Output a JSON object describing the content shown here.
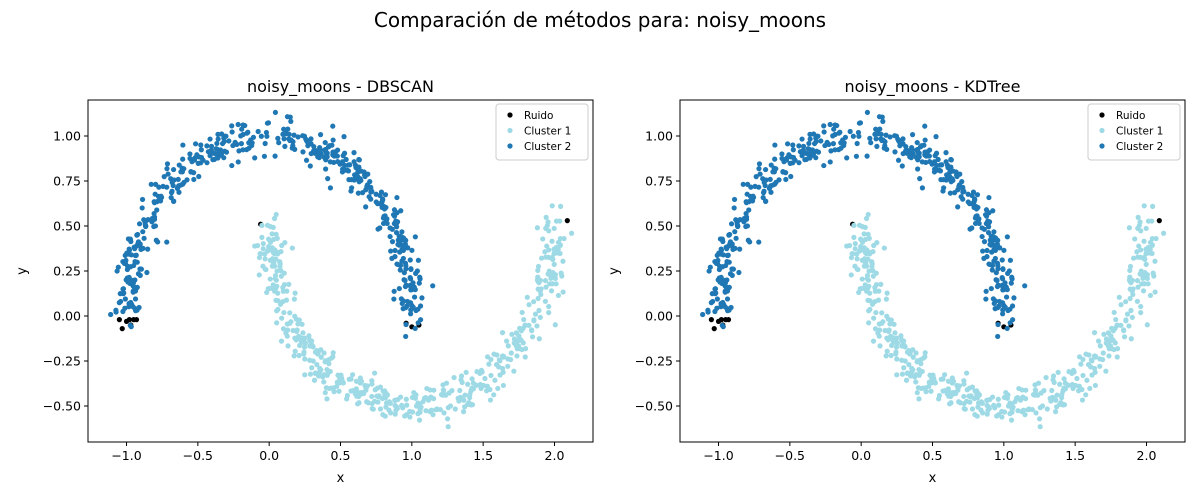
{
  "figure": {
    "suptitle": "Comparación de métodos para: noisy_moons"
  },
  "chart_data": [
    {
      "type": "scatter",
      "dataset": "noisy_moons",
      "method": "DBSCAN",
      "title": "noisy_moons - DBSCAN",
      "xlabel": "x",
      "ylabel": "y",
      "xlim": [
        -1.27,
        2.27
      ],
      "ylim": [
        -0.7,
        1.2
      ],
      "xticks": [
        -1.0,
        -0.5,
        0.0,
        0.5,
        1.0,
        1.5,
        2.0
      ],
      "xtick_labels": [
        "−1.0",
        "−0.5",
        "0.0",
        "0.5",
        "1.0",
        "1.5",
        "2.0"
      ],
      "yticks": [
        -0.5,
        -0.25,
        0.0,
        0.25,
        0.5,
        0.75,
        1.0
      ],
      "ytick_labels": [
        "−0.50",
        "−0.25",
        "0.00",
        "0.25",
        "0.50",
        "0.75",
        "1.00"
      ],
      "grid": false,
      "legend_position": "top-right",
      "n_points_per_moon": 500,
      "noise_std": 0.05,
      "series": [
        {
          "name": "Ruido",
          "color": "#000000",
          "points": [
            [
              -1.05,
              -0.02
            ],
            [
              -1.03,
              -0.07
            ],
            [
              -1.0,
              -0.03
            ],
            [
              -0.98,
              -0.02
            ],
            [
              -0.97,
              -0.05
            ],
            [
              -0.95,
              -0.02
            ],
            [
              -0.93,
              -0.02
            ],
            [
              -0.06,
              0.51
            ],
            [
              0.96,
              -0.04
            ],
            [
              1.0,
              -0.06
            ],
            [
              1.05,
              -0.05
            ],
            [
              2.09,
              0.53
            ]
          ]
        },
        {
          "name": "Cluster 1",
          "color": "#9edae5",
          "shape": "lower-moon"
        },
        {
          "name": "Cluster 2",
          "color": "#1f77b4",
          "shape": "upper-moon"
        }
      ]
    },
    {
      "type": "scatter",
      "dataset": "noisy_moons",
      "method": "KDTree",
      "title": "noisy_moons - KDTree",
      "xlabel": "x",
      "ylabel": "y",
      "xlim": [
        -1.27,
        2.27
      ],
      "ylim": [
        -0.7,
        1.2
      ],
      "xticks": [
        -1.0,
        -0.5,
        0.0,
        0.5,
        1.0,
        1.5,
        2.0
      ],
      "xtick_labels": [
        "−1.0",
        "−0.5",
        "0.0",
        "0.5",
        "1.0",
        "1.5",
        "2.0"
      ],
      "yticks": [
        -0.5,
        -0.25,
        0.0,
        0.25,
        0.5,
        0.75,
        1.0
      ],
      "ytick_labels": [
        "−0.50",
        "−0.25",
        "0.00",
        "0.25",
        "0.50",
        "0.75",
        "1.00"
      ],
      "grid": false,
      "legend_position": "top-right",
      "n_points_per_moon": 500,
      "noise_std": 0.05,
      "series": [
        {
          "name": "Ruido",
          "color": "#000000",
          "points": [
            [
              -1.05,
              -0.02
            ],
            [
              -1.03,
              -0.07
            ],
            [
              -1.0,
              -0.03
            ],
            [
              -0.98,
              -0.02
            ],
            [
              -0.97,
              -0.05
            ],
            [
              -0.95,
              -0.02
            ],
            [
              -0.93,
              -0.02
            ],
            [
              -0.06,
              0.51
            ],
            [
              0.96,
              -0.04
            ],
            [
              1.0,
              -0.06
            ],
            [
              1.05,
              -0.05
            ],
            [
              2.09,
              0.53
            ]
          ]
        },
        {
          "name": "Cluster 1",
          "color": "#9edae5",
          "shape": "lower-moon"
        },
        {
          "name": "Cluster 2",
          "color": "#1f77b4",
          "shape": "upper-moon"
        }
      ]
    }
  ]
}
